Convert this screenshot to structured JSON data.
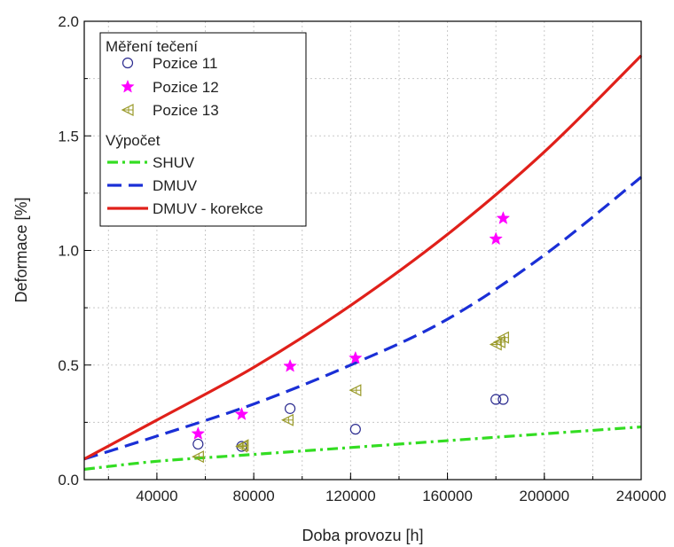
{
  "chart_data": {
    "type": "scatter",
    "title": "",
    "xlabel": "Doba provozu [h]",
    "ylabel": "Deformace [%]",
    "xlim": [
      10000,
      240000
    ],
    "ylim": [
      0,
      2.0
    ],
    "xticks": [
      40000,
      80000,
      120000,
      160000,
      200000,
      240000
    ],
    "xtick_labels": [
      "40000",
      "80000",
      "120000",
      "160000",
      "200000",
      "240000"
    ],
    "yticks": [
      0,
      0.5,
      1.0,
      1.5,
      2.0
    ],
    "ytick_labels": [
      "0.0",
      "0.5",
      "1.0",
      "1.5",
      "2.0"
    ],
    "grid": true,
    "legend_position": "top-left",
    "legend": {
      "group_measured": "Měření tečení",
      "group_calculated": "Výpočet"
    },
    "series": [
      {
        "name": "Pozice 11",
        "kind": "scatter",
        "marker": "circle",
        "color": "#2b2b8f",
        "x": [
          57000,
          75000,
          95000,
          122000,
          180000,
          183000
        ],
        "y": [
          0.155,
          0.145,
          0.31,
          0.22,
          0.35,
          0.35
        ]
      },
      {
        "name": "Pozice 12",
        "kind": "scatter",
        "marker": "star",
        "color": "#ff00ff",
        "x": [
          57000,
          75000,
          95000,
          122000,
          180000,
          183000
        ],
        "y": [
          0.2,
          0.285,
          0.495,
          0.53,
          1.05,
          1.14
        ]
      },
      {
        "name": "Pozice 13",
        "kind": "scatter",
        "marker": "triangle-left",
        "color": "#9a9a2a",
        "x": [
          57000,
          75000,
          75500,
          94000,
          122000,
          180000,
          181500,
          183000
        ],
        "y": [
          0.1,
          0.145,
          0.15,
          0.26,
          0.39,
          0.59,
          0.6,
          0.62
        ]
      },
      {
        "name": "SHUV",
        "kind": "line",
        "dash": "dashdot",
        "color": "#33dd22",
        "x": [
          10000,
          40000,
          80000,
          120000,
          160000,
          200000,
          240000
        ],
        "y": [
          0.045,
          0.08,
          0.11,
          0.14,
          0.17,
          0.2,
          0.23
        ]
      },
      {
        "name": "DMUV",
        "kind": "line",
        "dash": "dashed",
        "color": "#1a2fd6",
        "x": [
          10000,
          40000,
          80000,
          120000,
          160000,
          200000,
          240000
        ],
        "y": [
          0.09,
          0.19,
          0.33,
          0.5,
          0.7,
          0.98,
          1.32
        ]
      },
      {
        "name": "DMUV - korekce",
        "kind": "line",
        "dash": "solid",
        "color": "#e0201a",
        "x": [
          10000,
          40000,
          80000,
          120000,
          160000,
          200000,
          240000
        ],
        "y": [
          0.09,
          0.26,
          0.49,
          0.76,
          1.07,
          1.43,
          1.85
        ]
      }
    ]
  }
}
